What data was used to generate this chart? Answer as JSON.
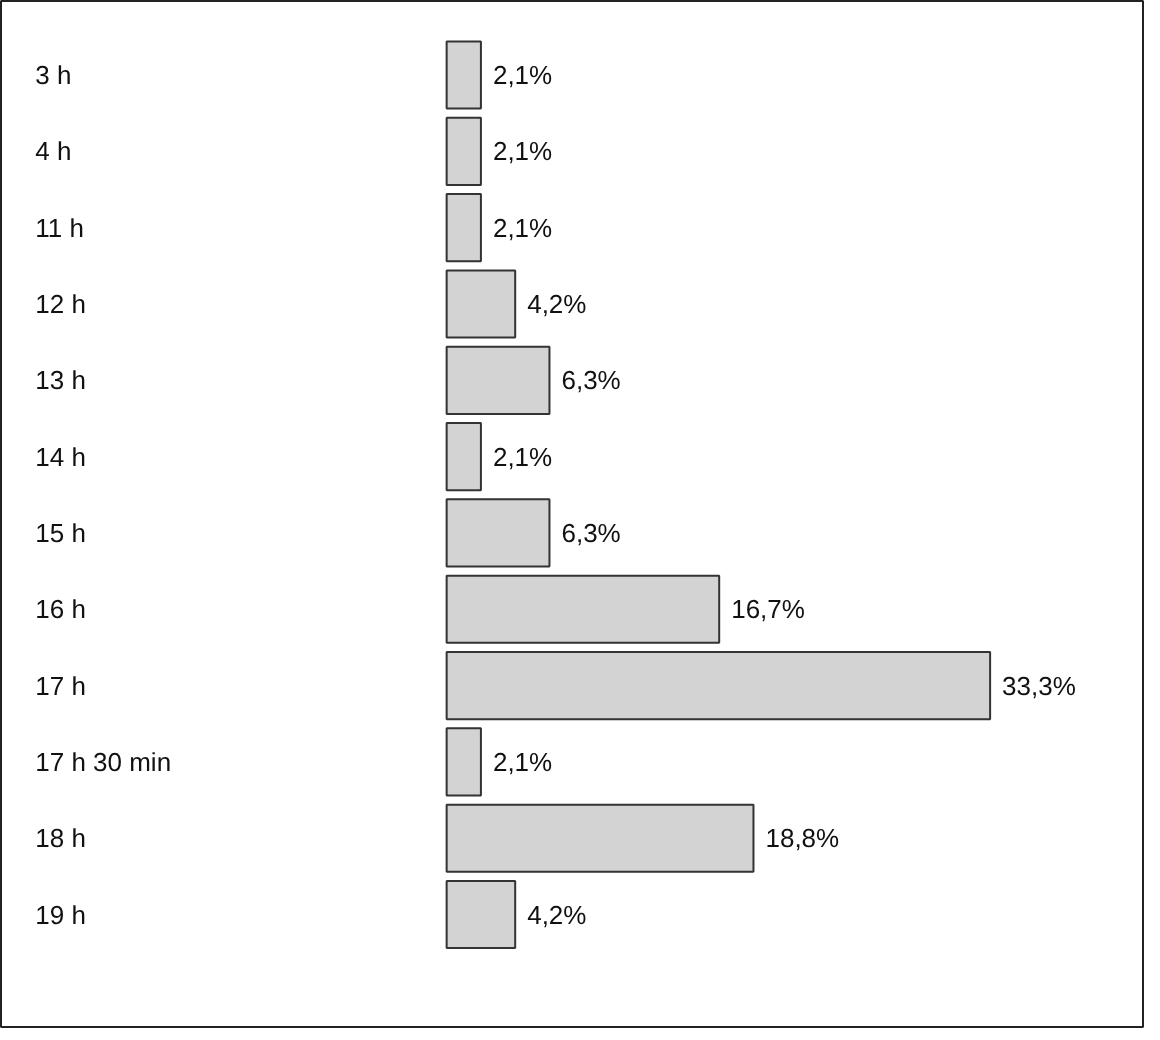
{
  "chart_data": {
    "type": "bar",
    "orientation": "horizontal",
    "categories": [
      "3 h",
      "4 h",
      "11 h",
      "12 h",
      "13 h",
      "14 h",
      "15 h",
      "16 h",
      "17 h",
      "17 h 30 min",
      "18 h",
      "19 h"
    ],
    "values": [
      2.1,
      2.1,
      2.1,
      4.2,
      6.3,
      2.1,
      6.3,
      16.7,
      33.3,
      2.1,
      18.8,
      4.2
    ],
    "value_labels": [
      "2,1%",
      "2,1%",
      "2,1%",
      "4,2%",
      "6,3%",
      "2,1%",
      "6,3%",
      "16,7%",
      "33,3%",
      "2,1%",
      "18,8%",
      "4,2%"
    ],
    "color": "#d3d3d3"
  }
}
